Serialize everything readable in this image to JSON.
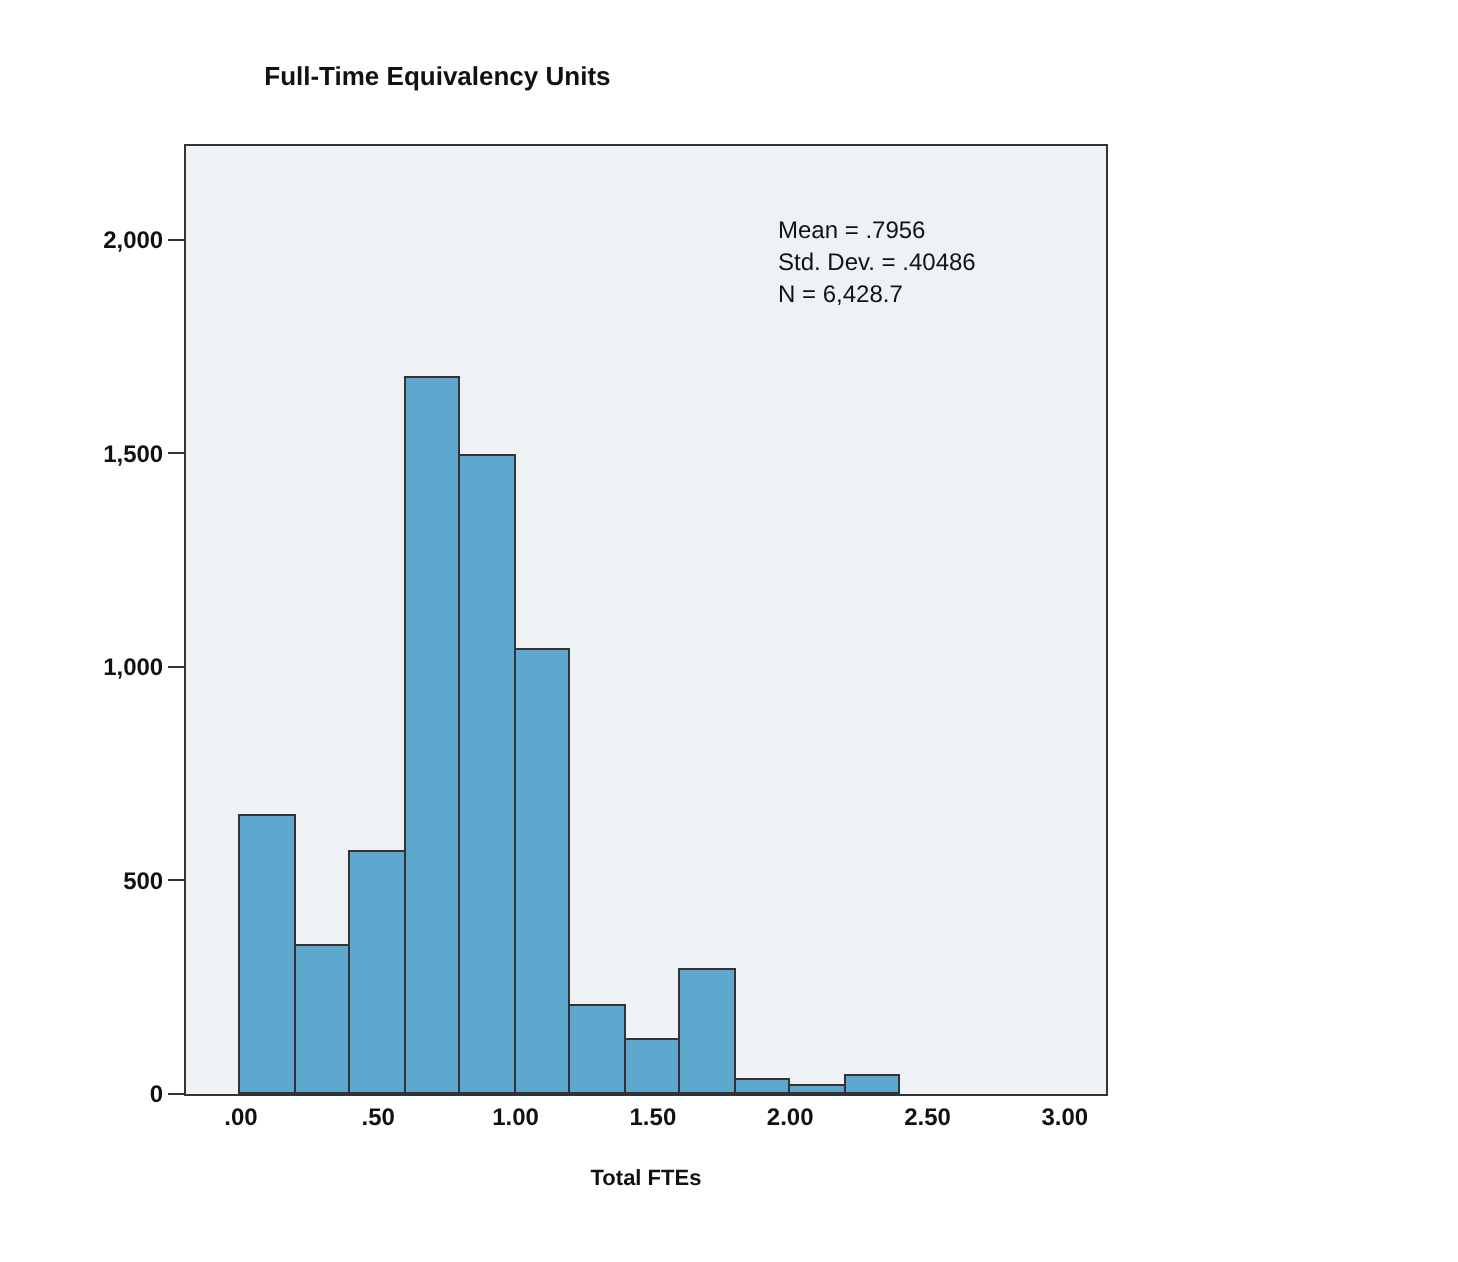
{
  "chart_data": {
    "type": "histogram",
    "title": "Full-Time Equivalency Units",
    "xlabel": "Total FTEs",
    "bins": [
      0,
      0.2,
      0.4,
      0.6,
      0.8,
      1.0,
      1.2,
      1.4,
      1.6,
      1.8,
      2.0,
      2.2,
      2.4
    ],
    "values": [
      650,
      345,
      565,
      1675,
      1495,
      1040,
      205,
      125,
      290,
      35,
      20,
      40
    ],
    "color": "#5ea7cf",
    "xlim": [
      -0.2,
      3.15
    ],
    "xticks": [
      {
        "value": 0,
        "label": ".00"
      },
      {
        "value": 0.5,
        "label": ".50"
      },
      {
        "value": 1,
        "label": "1.00"
      },
      {
        "value": 1.5,
        "label": "1.50"
      },
      {
        "value": 2,
        "label": "2.00"
      },
      {
        "value": 2.5,
        "label": "2.50"
      },
      {
        "value": 3,
        "label": "3.00"
      }
    ],
    "ylim": [
      0,
      2220
    ],
    "yticks": [
      0,
      500,
      {
        "value": 1000,
        "label": "1,000"
      },
      {
        "value": 1500,
        "label": "1,500"
      },
      {
        "value": 2000,
        "label": "2,000"
      }
    ],
    "annotations": [
      "Mean = .7956",
      "Std. Dev. = .40486",
      "N = 6,428.7"
    ],
    "grid": false
  }
}
